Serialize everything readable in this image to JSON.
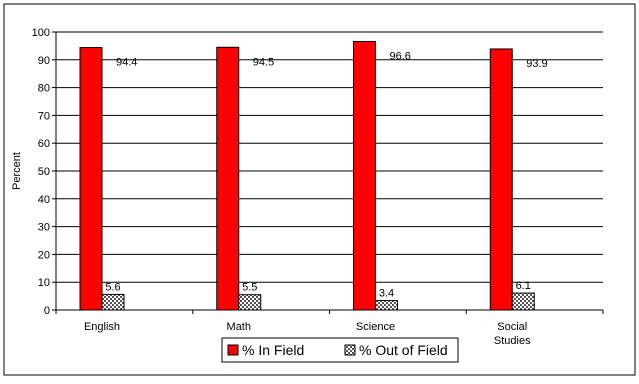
{
  "chart_data": {
    "type": "bar",
    "ylabel": "Percent",
    "ylim": [
      0,
      100
    ],
    "yticks": [
      "0",
      "10",
      "20",
      "30",
      "40",
      "50",
      "60",
      "70",
      "80",
      "90",
      "100"
    ],
    "categories": [
      {
        "lines": [
          "English"
        ]
      },
      {
        "lines": [
          "Math"
        ]
      },
      {
        "lines": [
          "Science"
        ]
      },
      {
        "lines": [
          "Social",
          "Studies"
        ]
      }
    ],
    "series": [
      {
        "name": "% In Field",
        "values": [
          94.4,
          94.5,
          96.6,
          93.9
        ],
        "labels": [
          "94.4",
          "94.5",
          "96.6",
          "93.9"
        ],
        "color": "#ff0000",
        "pattern": "solid"
      },
      {
        "name": "% Out of Field",
        "values": [
          5.6,
          5.5,
          3.4,
          6.1
        ],
        "labels": [
          "5.6",
          "5.5",
          "3.4",
          "6.1"
        ],
        "color": "#808080",
        "pattern": "checker"
      }
    ],
    "grid": true,
    "legend_position": "bottom-center"
  }
}
